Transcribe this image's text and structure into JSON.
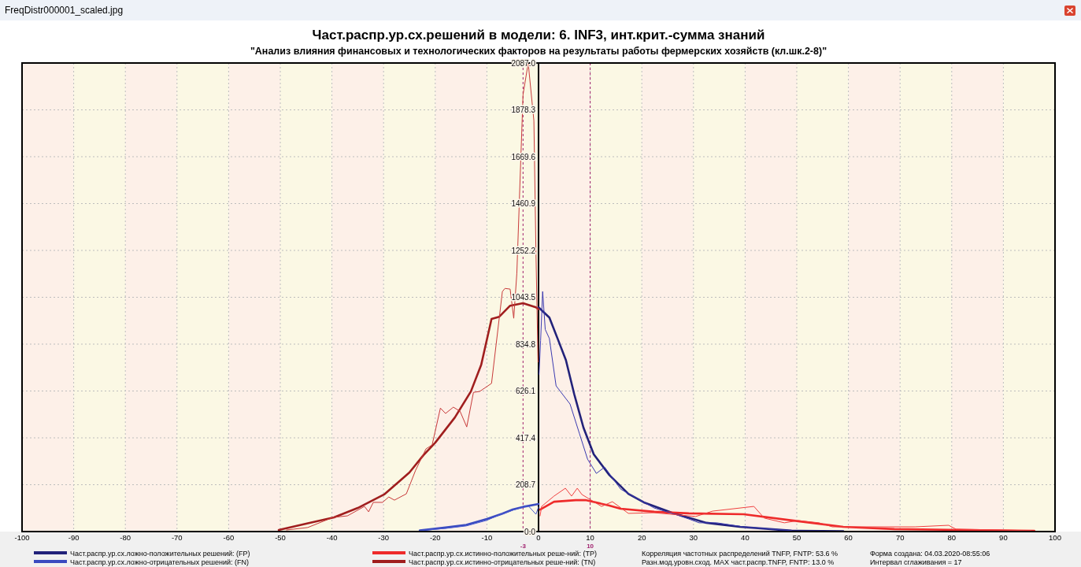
{
  "chart_data": {
    "type": "line",
    "title": "Част.распр.ур.сх.решений в модели: 6. INF3, инт.крит.-сумма знаний",
    "subtitle": "\"Анализ влияния финансовых и технологических факторов на результаты работы фермерских хозяйств  (кл.шк.2-8)\"",
    "xlim": [
      -100,
      100
    ],
    "xticks": [
      -100,
      -90,
      -80,
      -70,
      -60,
      -50,
      -40,
      -30,
      -20,
      -10,
      0,
      10,
      20,
      30,
      40,
      50,
      60,
      70,
      80,
      90,
      100
    ],
    "ylim": [
      0,
      2087
    ],
    "yticks": [
      {
        "value": 0,
        "label": "0.0"
      },
      {
        "value": 208.7,
        "label": "208.7"
      },
      {
        "value": 417.4,
        "label": "417.4"
      },
      {
        "value": 626.1,
        "label": "626.1"
      },
      {
        "value": 834.8,
        "label": "834.8"
      },
      {
        "value": 1043.5,
        "label": "1043.5"
      },
      {
        "value": 1252.2,
        "label": "1252.2"
      },
      {
        "value": 1460.9,
        "label": "1460.9"
      },
      {
        "value": 1669.6,
        "label": "1669.6"
      },
      {
        "value": 1878.3,
        "label": "1878.3"
      },
      {
        "value": 2087,
        "label": "2087.0"
      }
    ],
    "grid": true,
    "legend": "bottom",
    "series": [
      {
        "name": "Част.распр.ур.сх.ложно-положительных решений: (FP)",
        "color": "#22227a",
        "x": [
          0,
          2.1,
          3.7,
          5.3,
          6.9,
          8.7,
          10.7,
          13.7,
          17.4,
          20.4,
          25.8,
          32.5,
          39,
          49,
          59
        ],
        "values": [
          999,
          953,
          859,
          764,
          613,
          463,
          344,
          252,
          168,
          130,
          84,
          39,
          21,
          4,
          2
        ]
      },
      {
        "name": "Част.распр.ур.сх.ложно-отрицательных решений: (FN)",
        "color": "#3a4ac0",
        "x": [
          -23,
          -18,
          -14,
          -10,
          -7,
          -5,
          -3,
          0
        ],
        "values": [
          5,
          18,
          30,
          56,
          80,
          98,
          110,
          123
        ]
      },
      {
        "name": "Част.распр.ур.сх.истинно-положительных реше-ний: (TP)",
        "color": "#ee2a2a",
        "x": [
          0.3,
          3,
          7.2,
          9.1,
          13.7,
          15.9,
          22.4,
          29.1,
          39.7,
          50.3,
          59,
          68.9,
          82,
          96
        ],
        "values": [
          98,
          133,
          140,
          140,
          116,
          102,
          88,
          81,
          77,
          46,
          21,
          11,
          7,
          3
        ]
      },
      {
        "name": "Част.распр.ур.сх.истинно-отрицательных реше-ний: (TN)",
        "color": "#a01e1e",
        "x": [
          -50.3,
          -45,
          -39.6,
          -35,
          -29.9,
          -25,
          -22.3,
          -20,
          -16.2,
          -13.1,
          -11.1,
          -9.1,
          -7.6,
          -5.5,
          -3,
          -0.5,
          0
        ],
        "values": [
          7,
          35,
          63,
          105,
          165,
          263,
          340,
          396,
          508,
          624,
          743,
          947,
          957,
          1006,
          1017,
          999,
          990
        ]
      },
      {
        "color": "#3a3ab0",
        "x": [
          0.1,
          0.4,
          0.8,
          1.3,
          2.1,
          3.4,
          6.1,
          7.9,
          9.5,
          11.2,
          12.8,
          15.9,
          18.8,
          22.4,
          26.4,
          29.1,
          31.1,
          34.5,
          39.7,
          45.7,
          49
        ],
        "values": [
          700,
          850,
          1069,
          900,
          860,
          649,
          568,
          438,
          322,
          259,
          287,
          189,
          151,
          105,
          77,
          56,
          39,
          39,
          21,
          10,
          4
        ]
      },
      {
        "color": "#4a5ad0",
        "x": [
          -23,
          -18,
          -14,
          -10,
          -8,
          -5,
          -2,
          -0.5,
          0
        ],
        "values": [
          4,
          14,
          25,
          50,
          70,
          95,
          115,
          77,
          110
        ]
      },
      {
        "color": "#f04040",
        "x": [
          0.3,
          0.6,
          3,
          5.2,
          6.4,
          7.5,
          8.4,
          12.2,
          14.3,
          17.4,
          22.4,
          30.4,
          33.7,
          41.7,
          43.7,
          47.6,
          50.3,
          54.3,
          56.9,
          72.9,
          79.4,
          80.8,
          95.4
        ],
        "values": [
          70,
          112,
          158,
          193,
          158,
          193,
          165,
          112,
          133,
          81,
          84,
          67,
          91,
          112,
          60,
          39,
          49,
          39,
          21,
          21,
          28,
          11,
          4
        ]
      },
      {
        "color": "#c83a3a",
        "x": [
          -48.8,
          -44.7,
          -39.8,
          -37,
          -33.7,
          -32.9,
          -32,
          -30.2,
          -29,
          -27.9,
          -25.6,
          -23.8,
          -21.8,
          -20.6,
          -19,
          -18,
          -16.5,
          -15.2,
          -13.9,
          -12.6,
          -11.4,
          -9.1,
          -7,
          -6.5,
          -5.5,
          -4.8,
          -4.2,
          -3,
          -2,
          -0.9,
          -0.5,
          -0.3,
          -0.1
        ],
        "values": [
          7,
          18,
          63,
          70,
          112,
          88,
          130,
          130,
          154,
          140,
          168,
          273,
          368,
          386,
          550,
          526,
          554,
          536,
          466,
          620,
          624,
          660,
          1069,
          1083,
          1080,
          950,
          1150,
          1946,
          2087,
          1830,
          1245,
          1000,
          755
        ]
      }
    ],
    "ref_lines": [
      {
        "axis": "x",
        "value": -3,
        "label": "-3",
        "color": "#a0206e",
        "line_style": "dashed"
      },
      {
        "axis": "x",
        "value": 10,
        "label": "10",
        "color": "#a0206e",
        "line_style": "dashed"
      }
    ],
    "bands": [
      {
        "axis": "x",
        "from": -100,
        "to": -90,
        "color": "#fdf0e8"
      },
      {
        "axis": "x",
        "from": -90,
        "to": -80,
        "color": "#fbf8e4"
      },
      {
        "axis": "x",
        "from": -80,
        "to": -70,
        "color": "#fdf0e8"
      },
      {
        "axis": "x",
        "from": -70,
        "to": -60,
        "color": "#fbf8e4"
      },
      {
        "axis": "x",
        "from": -60,
        "to": -50,
        "color": "#fdf0e8"
      },
      {
        "axis": "x",
        "from": -50,
        "to": -40,
        "color": "#fbf8e4"
      },
      {
        "axis": "x",
        "from": -40,
        "to": -30,
        "color": "#fdf0e8"
      },
      {
        "axis": "x",
        "from": -30,
        "to": -20,
        "color": "#fbf8e4"
      },
      {
        "axis": "x",
        "from": -20,
        "to": -10,
        "color": "#fdf0e8"
      },
      {
        "axis": "x",
        "from": -10,
        "to": 0,
        "color": "#fbf8e4"
      },
      {
        "axis": "x",
        "from": 0,
        "to": 10,
        "color": "#fdf0e8"
      },
      {
        "axis": "x",
        "from": 10,
        "to": 20,
        "color": "#fbf8e4"
      },
      {
        "axis": "x",
        "from": 20,
        "to": 30,
        "color": "#fdf0e8"
      },
      {
        "axis": "x",
        "from": 30,
        "to": 40,
        "color": "#fbf8e4"
      },
      {
        "axis": "x",
        "from": 40,
        "to": 50,
        "color": "#fdf0e8"
      },
      {
        "axis": "x",
        "from": 50,
        "to": 60,
        "color": "#fbf8e4"
      },
      {
        "axis": "x",
        "from": 60,
        "to": 70,
        "color": "#fdf0e8"
      },
      {
        "axis": "x",
        "from": 70,
        "to": 80,
        "color": "#fbf8e4"
      },
      {
        "axis": "x",
        "from": 80,
        "to": 90,
        "color": "#fdf0e8"
      },
      {
        "axis": "x",
        "from": 90,
        "to": 100,
        "color": "#fbf8e4"
      }
    ],
    "annotations": [
      "FreqDistr000001_scaled.jpg",
      "Корреляция частотных распределений TNFP, FNTP: 53.6 %",
      "Разн.мод.уровн.сход. MAX част.распр.TNFP, FNTP:  13.0 %",
      "Форма создана: 04.03.2020-08:55:06",
      "Интервал сглаживания = 17"
    ]
  }
}
